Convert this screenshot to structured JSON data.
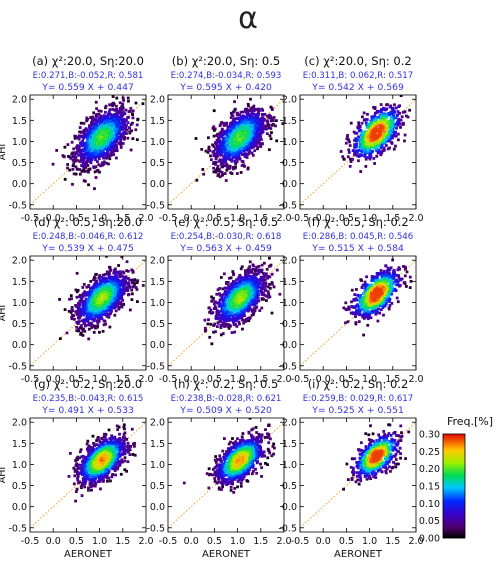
{
  "figure": {
    "title": "α",
    "colorbar": {
      "label": "Freq.[%]",
      "ticks": [
        "0.00",
        "0.05",
        "0.10",
        "0.15",
        "0.20",
        "0.25",
        "0.30"
      ],
      "range": [
        0.0,
        0.3
      ]
    },
    "colors": {
      "stats_text": "#3333dd",
      "reference_line": "#f0a030"
    }
  },
  "chart_data": [
    {
      "type": "scatter",
      "title": "(a) χ²:20.0, Sη:20.0",
      "stats": "E:0.271,B:-0.052,R: 0.581",
      "fit": "Y= 0.559 X +  0.447",
      "xlabel": "",
      "ylabel": "AHI",
      "xlim": [
        -0.5,
        2.0
      ],
      "ylim": [
        -0.6,
        2.1
      ],
      "xticks": [
        "-0.5",
        "0.0",
        "0.5",
        "1.0",
        "1.5",
        "2.0"
      ],
      "yticks": [
        "-0.5",
        "0.0",
        "0.5",
        "1.0",
        "1.5",
        "2.0"
      ],
      "reference_line": "1:1",
      "density": {
        "center": [
          1.05,
          1.1
        ],
        "spread": [
          0.28,
          0.33
        ],
        "points": 1300,
        "max_freq": 0.18
      }
    },
    {
      "type": "scatter",
      "title": "(b) χ²:20.0, Sη: 0.5",
      "stats": "E:0.274,B:-0.034,R: 0.593",
      "fit": "Y= 0.595 X +  0.420",
      "xlabel": "",
      "ylabel": "",
      "xlim": [
        -0.5,
        2.0
      ],
      "ylim": [
        -0.6,
        2.1
      ],
      "xticks": [
        "-0.5",
        "0.0",
        "0.5",
        "1.0",
        "1.5",
        "2.0"
      ],
      "yticks": [
        "-0.5",
        "0.0",
        "0.5",
        "1.0",
        "1.5",
        "2.0"
      ],
      "reference_line": "1:1",
      "density": {
        "center": [
          1.05,
          1.1
        ],
        "spread": [
          0.28,
          0.33
        ],
        "points": 1300,
        "max_freq": 0.18
      }
    },
    {
      "type": "scatter",
      "title": "(c) χ²:20.0, Sη: 0.2",
      "stats": "E:0.311,B: 0.062,R: 0.517",
      "fit": "Y= 0.542 X +  0.569",
      "xlabel": "",
      "ylabel": "",
      "xlim": [
        -0.5,
        2.0
      ],
      "ylim": [
        -0.6,
        2.1
      ],
      "xticks": [
        "-0.5",
        "0.0",
        "0.5",
        "1.0",
        "1.5",
        "2.0"
      ],
      "yticks": [
        "-0.5",
        "0.0",
        "0.5",
        "1.0",
        "1.5",
        "2.0"
      ],
      "reference_line": "1:1",
      "density": {
        "center": [
          1.15,
          1.2
        ],
        "spread": [
          0.26,
          0.3
        ],
        "points": 650,
        "max_freq": 0.3
      }
    },
    {
      "type": "scatter",
      "title": "(d) χ²: 0.5, Sη:20.0",
      "stats": "E:0.248,B:-0.046,R: 0.612",
      "fit": "Y= 0.539 X +  0.475",
      "xlabel": "",
      "ylabel": "AHI",
      "xlim": [
        -0.5,
        2.0
      ],
      "ylim": [
        -0.6,
        2.1
      ],
      "xticks": [
        "-0.5",
        "0.0",
        "0.5",
        "1.0",
        "1.5",
        "2.0"
      ],
      "yticks": [
        "-0.5",
        "0.0",
        "0.5",
        "1.0",
        "1.5",
        "2.0"
      ],
      "reference_line": "1:1",
      "density": {
        "center": [
          1.05,
          1.1
        ],
        "spread": [
          0.27,
          0.31
        ],
        "points": 1200,
        "max_freq": 0.2
      }
    },
    {
      "type": "scatter",
      "title": "(e) χ²: 0.5, Sη: 0.5",
      "stats": "E:0.254,B:-0.030,R: 0.618",
      "fit": "Y= 0.563 X +  0.459",
      "xlabel": "",
      "ylabel": "",
      "xlim": [
        -0.5,
        2.0
      ],
      "ylim": [
        -0.6,
        2.1
      ],
      "xticks": [
        "-0.5",
        "0.0",
        "0.5",
        "1.0",
        "1.5",
        "2.0"
      ],
      "yticks": [
        "-0.5",
        "0.0",
        "0.5",
        "1.0",
        "1.5",
        "2.0"
      ],
      "reference_line": "1:1",
      "density": {
        "center": [
          1.05,
          1.1
        ],
        "spread": [
          0.27,
          0.31
        ],
        "points": 1200,
        "max_freq": 0.2
      }
    },
    {
      "type": "scatter",
      "title": "(f) χ²: 0.5, Sη: 0.2",
      "stats": "E:0.286,B: 0.045,R: 0.546",
      "fit": "Y= 0.515 X +  0.584",
      "xlabel": "",
      "ylabel": "",
      "xlim": [
        -0.5,
        2.0
      ],
      "ylim": [
        -0.6,
        2.1
      ],
      "xticks": [
        "-0.5",
        "0.0",
        "0.5",
        "1.0",
        "1.5",
        "2.0"
      ],
      "yticks": [
        "-0.5",
        "0.0",
        "0.5",
        "1.0",
        "1.5",
        "2.0"
      ],
      "reference_line": "1:1",
      "density": {
        "center": [
          1.15,
          1.2
        ],
        "spread": [
          0.25,
          0.28
        ],
        "points": 620,
        "max_freq": 0.3
      }
    },
    {
      "type": "scatter",
      "title": "(g) χ²: 0.2, Sη:20.0",
      "stats": "E:0.235,B:-0.043,R: 0.615",
      "fit": "Y= 0.491 X +  0.533",
      "xlabel": "AERONET",
      "ylabel": "AHI",
      "xlim": [
        -0.5,
        2.0
      ],
      "ylim": [
        -0.6,
        2.1
      ],
      "xticks": [
        "-0.5",
        "0.0",
        "0.5",
        "1.0",
        "1.5",
        "2.0"
      ],
      "yticks": [
        "-0.5",
        "0.0",
        "0.5",
        "1.0",
        "1.5",
        "2.0"
      ],
      "reference_line": "1:1",
      "density": {
        "center": [
          1.05,
          1.1
        ],
        "spread": [
          0.25,
          0.27
        ],
        "points": 1000,
        "max_freq": 0.25
      }
    },
    {
      "type": "scatter",
      "title": "(h) χ²: 0.2, Sη: 0.5",
      "stats": "E:0.238,B:-0.028,R: 0.621",
      "fit": "Y= 0.509 X +  0.520",
      "xlabel": "AERONET",
      "ylabel": "",
      "xlim": [
        -0.5,
        2.0
      ],
      "ylim": [
        -0.6,
        2.1
      ],
      "xticks": [
        "-0.5",
        "0.0",
        "0.5",
        "1.0",
        "1.5",
        "2.0"
      ],
      "yticks": [
        "-0.5",
        "0.0",
        "0.5",
        "1.0",
        "1.5",
        "2.0"
      ],
      "reference_line": "1:1",
      "density": {
        "center": [
          1.05,
          1.1
        ],
        "spread": [
          0.25,
          0.27
        ],
        "points": 1000,
        "max_freq": 0.25
      }
    },
    {
      "type": "scatter",
      "title": "(i) χ²: 0.2, Sη: 0.2",
      "stats": "E:0.259,B: 0.029,R: 0.617",
      "fit": "Y= 0.525 X +  0.551",
      "xlabel": "AERONET",
      "ylabel": "",
      "xlim": [
        -0.5,
        2.0
      ],
      "ylim": [
        -0.6,
        2.1
      ],
      "xticks": [
        "-0.5",
        "0.0",
        "0.5",
        "1.0",
        "1.5",
        "2.0"
      ],
      "yticks": [
        "-0.5",
        "0.0",
        "0.5",
        "1.0",
        "1.5",
        "2.0"
      ],
      "reference_line": "1:1",
      "density": {
        "center": [
          1.15,
          1.2
        ],
        "spread": [
          0.23,
          0.25
        ],
        "points": 560,
        "max_freq": 0.3
      }
    }
  ]
}
